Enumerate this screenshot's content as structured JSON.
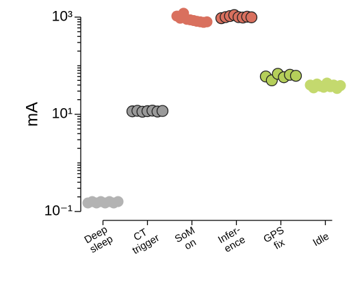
{
  "chart_data": {
    "type": "strip",
    "log_y": true,
    "ylabel": "mA",
    "categories": [
      [
        "Deep",
        "sleep"
      ],
      [
        "CT",
        "trigger"
      ],
      [
        "SoM",
        "on"
      ],
      [
        "Infer-",
        "ence"
      ],
      [
        "GPS",
        "fix"
      ],
      [
        "Idle"
      ]
    ],
    "values": [
      [
        0.15,
        0.16,
        0.15,
        0.16,
        0.15,
        0.16,
        0.15,
        0.16
      ],
      [
        11.5,
        11.8,
        11.3,
        11.6,
        11.9,
        11.4,
        11.7
      ],
      [
        1050,
        950,
        1200,
        900,
        880,
        850,
        820,
        800,
        780,
        800
      ],
      [
        950,
        1000,
        1050,
        1100,
        1000,
        980,
        1020,
        990
      ],
      [
        60,
        50,
        68,
        58,
        65,
        62
      ],
      [
        40,
        35,
        42,
        38,
        36,
        44,
        37,
        40,
        34,
        39
      ]
    ],
    "colors": [
      "#b3b3b3",
      "#9a9a9a",
      "#d9705e",
      "#d9705e",
      "#b5cf5a",
      "#c4d96e"
    ],
    "outlined": [
      false,
      true,
      false,
      true,
      true,
      false
    ],
    "ylim": [
      0.1,
      1000
    ],
    "yticks": [
      {
        "value": 0.1,
        "label": "10⁻¹"
      },
      {
        "value": 10,
        "label": "10¹"
      },
      {
        "value": 1000,
        "label": "10³"
      }
    ],
    "yminorticks": [
      0.2,
      0.3,
      0.4,
      0.5,
      0.6,
      0.7,
      0.8,
      0.9,
      1,
      2,
      3,
      4,
      5,
      6,
      7,
      8,
      9,
      20,
      30,
      40,
      50,
      60,
      70,
      80,
      90,
      100,
      200,
      300,
      400,
      500,
      600,
      700,
      800,
      900
    ]
  }
}
